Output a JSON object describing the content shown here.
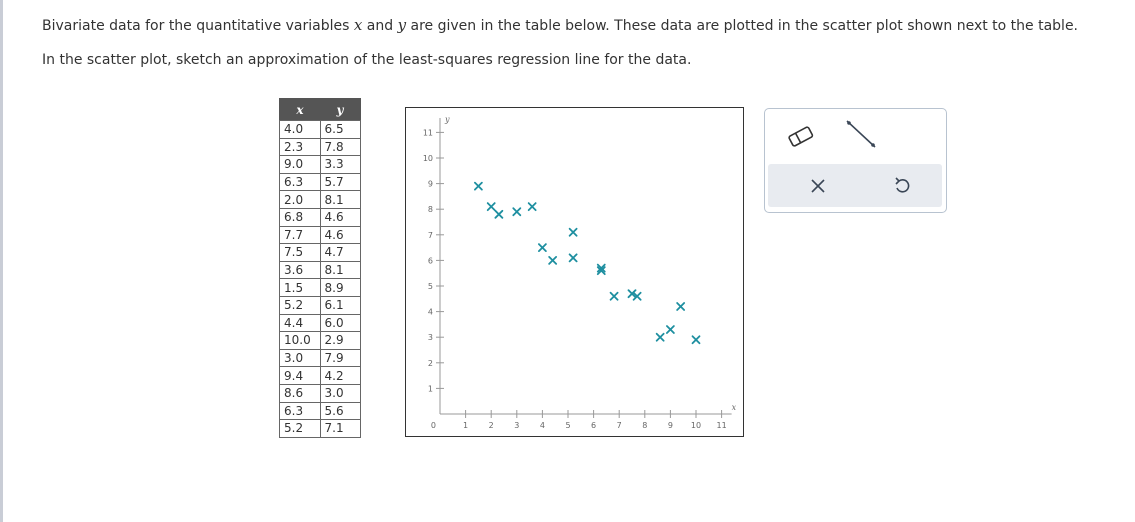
{
  "question": {
    "line1": {
      "a": "Bivariate data for the quantitative variables ",
      "x": "x",
      "b": " and ",
      "y": "y",
      "c": " are given in the table below. These data are plotted in the scatter plot shown next to the table."
    },
    "line2": "In the scatter plot, sketch an approximation of the least-squares regression line for the data."
  },
  "table": {
    "headers": [
      "x",
      "y"
    ],
    "rows": [
      [
        "4.0",
        "6.5"
      ],
      [
        "2.3",
        "7.8"
      ],
      [
        "9.0",
        "3.3"
      ],
      [
        "6.3",
        "5.7"
      ],
      [
        "2.0",
        "8.1"
      ],
      [
        "6.8",
        "4.6"
      ],
      [
        "7.7",
        "4.6"
      ],
      [
        "7.5",
        "4.7"
      ],
      [
        "3.6",
        "8.1"
      ],
      [
        "1.5",
        "8.9"
      ],
      [
        "5.2",
        "6.1"
      ],
      [
        "4.4",
        "6.0"
      ],
      [
        "10.0",
        "2.9"
      ],
      [
        "3.0",
        "7.9"
      ],
      [
        "9.4",
        "4.2"
      ],
      [
        "8.6",
        "3.0"
      ],
      [
        "6.3",
        "5.6"
      ],
      [
        "5.2",
        "7.1"
      ]
    ]
  },
  "chart_data": {
    "type": "scatter",
    "xlabel": "x",
    "ylabel": "y",
    "xlim": [
      0,
      11
    ],
    "ylim": [
      0,
      11
    ],
    "x_ticks": [
      "1",
      "2",
      "3",
      "4",
      "5",
      "6",
      "7",
      "8",
      "9",
      "10",
      "11"
    ],
    "y_ticks": [
      "1",
      "2",
      "3",
      "4",
      "5",
      "6",
      "7",
      "8",
      "9",
      "10",
      "11"
    ],
    "origin_label": "0",
    "marker": "x",
    "marker_color": "#1e8fa0",
    "points": [
      [
        4.0,
        6.5
      ],
      [
        2.3,
        7.8
      ],
      [
        9.0,
        3.3
      ],
      [
        6.3,
        5.7
      ],
      [
        2.0,
        8.1
      ],
      [
        6.8,
        4.6
      ],
      [
        7.7,
        4.6
      ],
      [
        7.5,
        4.7
      ],
      [
        3.6,
        8.1
      ],
      [
        1.5,
        8.9
      ],
      [
        5.2,
        6.1
      ],
      [
        4.4,
        6.0
      ],
      [
        10.0,
        2.9
      ],
      [
        3.0,
        7.9
      ],
      [
        9.4,
        4.2
      ],
      [
        8.6,
        3.0
      ],
      [
        6.3,
        5.6
      ],
      [
        5.2,
        7.1
      ]
    ]
  },
  "toolbar": {
    "tools": [
      "eraser-icon",
      "line-tool-icon"
    ],
    "actions": [
      "clear-icon",
      "undo-icon"
    ]
  }
}
